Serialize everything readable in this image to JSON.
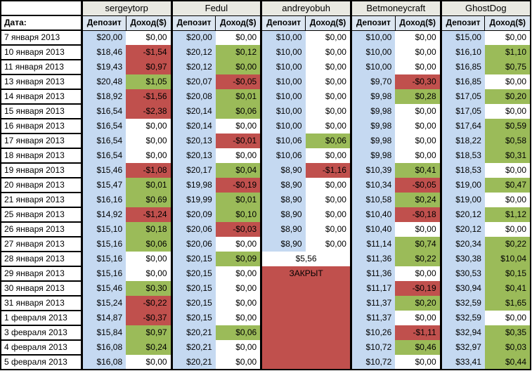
{
  "colors": {
    "green": "#9BBB59",
    "red": "#C0504D",
    "dep-blue": "#C5D9F1",
    "hdr-blue": "#DCE6F1",
    "trader-bg": "#E9E9E2"
  },
  "table": {
    "date_header": "Дата:",
    "col_headers": {
      "deposit": "Депозит",
      "income": "Доход($)"
    },
    "traders": [
      "sergeytorp",
      "Fedul",
      "andreyobuh",
      "Betmoneycraft",
      "GhostDog"
    ],
    "closed_label": "ЗАКРЫТ",
    "rows": [
      {
        "date": "7 января 2013",
        "cells": [
          [
            "$20,00",
            "$0,00",
            "w"
          ],
          [
            "$20,00",
            "$0,00",
            "w"
          ],
          [
            "$10,00",
            "$0,00",
            "w"
          ],
          [
            "$10,00",
            "$0,00",
            "w"
          ],
          [
            "$15,00",
            "$0,00",
            "w"
          ]
        ]
      },
      {
        "date": "10 января 2013",
        "cells": [
          [
            "$18,46",
            "-$1,54",
            "r"
          ],
          [
            "$20,12",
            "$0,12",
            "g"
          ],
          [
            "$10,00",
            "$0,00",
            "w"
          ],
          [
            "$10,00",
            "$0,00",
            "w"
          ],
          [
            "$16,10",
            "$1,10",
            "g"
          ]
        ]
      },
      {
        "date": "11 января 2013",
        "cells": [
          [
            "$19,43",
            "$0,97",
            "r"
          ],
          [
            "$20,12",
            "$0,00",
            "g"
          ],
          [
            "$10,00",
            "$0,00",
            "w"
          ],
          [
            "$10,00",
            "$0,00",
            "w"
          ],
          [
            "$16,85",
            "$0,75",
            "g"
          ]
        ]
      },
      {
        "date": "13 января 2013",
        "cells": [
          [
            "$20,48",
            "$1,05",
            "g"
          ],
          [
            "$20,07",
            "-$0,05",
            "r"
          ],
          [
            "$10,00",
            "$0,00",
            "w"
          ],
          [
            "$9,70",
            "-$0,30",
            "r"
          ],
          [
            "$16,85",
            "$0,00",
            "w"
          ]
        ]
      },
      {
        "date": "14 января 2013",
        "cells": [
          [
            "$18,92",
            "-$1,56",
            "r"
          ],
          [
            "$20,08",
            "$0,01",
            "g"
          ],
          [
            "$10,00",
            "$0,00",
            "w"
          ],
          [
            "$9,98",
            "$0,28",
            "g"
          ],
          [
            "$17,05",
            "$0,20",
            "g"
          ]
        ]
      },
      {
        "date": "15 января 2013",
        "cells": [
          [
            "$16,54",
            "-$2,38",
            "r"
          ],
          [
            "$20,14",
            "$0,06",
            "g"
          ],
          [
            "$10,00",
            "$0,00",
            "w"
          ],
          [
            "$9,98",
            "$0,00",
            "w"
          ],
          [
            "$17,05",
            "$0,00",
            "w"
          ]
        ]
      },
      {
        "date": "16 января 2013",
        "cells": [
          [
            "$16,54",
            "$0,00",
            "w"
          ],
          [
            "$20,14",
            "$0,00",
            "w"
          ],
          [
            "$10,00",
            "$0,00",
            "w"
          ],
          [
            "$9,98",
            "$0,00",
            "w"
          ],
          [
            "$17,64",
            "$0,59",
            "g"
          ]
        ]
      },
      {
        "date": "17 января 2013",
        "cells": [
          [
            "$16,54",
            "$0,00",
            "w"
          ],
          [
            "$20,13",
            "-$0,01",
            "r"
          ],
          [
            "$10,06",
            "$0,06",
            "g"
          ],
          [
            "$9,98",
            "$0,00",
            "w"
          ],
          [
            "$18,22",
            "$0,58",
            "g"
          ]
        ]
      },
      {
        "date": "18 января 2013",
        "cells": [
          [
            "$16,54",
            "$0,00",
            "w"
          ],
          [
            "$20,13",
            "$0,00",
            "w"
          ],
          [
            "$10,06",
            "$0,00",
            "w"
          ],
          [
            "$9,98",
            "$0,00",
            "w"
          ],
          [
            "$18,53",
            "$0,31",
            "g"
          ]
        ]
      },
      {
        "date": "19 января 2013",
        "cells": [
          [
            "$15,46",
            "-$1,08",
            "r"
          ],
          [
            "$20,17",
            "$0,04",
            "g"
          ],
          [
            "$8,90",
            "-$1,16",
            "r"
          ],
          [
            "$10,39",
            "$0,41",
            "g"
          ],
          [
            "$18,53",
            "$0,00",
            "w"
          ]
        ]
      },
      {
        "date": "20 января 2013",
        "cells": [
          [
            "$15,47",
            "$0,01",
            "g"
          ],
          [
            "$19,98",
            "-$0,19",
            "r"
          ],
          [
            "$8,90",
            "$0,00",
            "w"
          ],
          [
            "$10,34",
            "-$0,05",
            "r"
          ],
          [
            "$19,00",
            "$0,47",
            "g"
          ]
        ]
      },
      {
        "date": "21 января 2013",
        "cells": [
          [
            "$16,16",
            "$0,69",
            "g"
          ],
          [
            "$19,99",
            "$0,01",
            "g"
          ],
          [
            "$8,90",
            "$0,00",
            "w"
          ],
          [
            "$10,58",
            "$0,24",
            "g"
          ],
          [
            "$19,00",
            "$0,00",
            "w"
          ]
        ]
      },
      {
        "date": "25 января 2013",
        "cells": [
          [
            "$14,92",
            "-$1,24",
            "r"
          ],
          [
            "$20,09",
            "$0,10",
            "g"
          ],
          [
            "$8,90",
            "$0,00",
            "w"
          ],
          [
            "$10,40",
            "-$0,18",
            "r"
          ],
          [
            "$20,12",
            "$1,12",
            "g"
          ]
        ]
      },
      {
        "date": "26 января 2013",
        "cells": [
          [
            "$15,10",
            "$0,18",
            "g"
          ],
          [
            "$20,06",
            "-$0,03",
            "r"
          ],
          [
            "$8,90",
            "$0,00",
            "w"
          ],
          [
            "$10,40",
            "$0,00",
            "w"
          ],
          [
            "$20,12",
            "$0,00",
            "w"
          ]
        ]
      },
      {
        "date": "27 января 2013",
        "cells": [
          [
            "$15,16",
            "$0,06",
            "g"
          ],
          [
            "$20,06",
            "$0,00",
            "w"
          ],
          [
            "$8,90",
            "$0,00",
            "w"
          ],
          [
            "$11,14",
            "$0,74",
            "g"
          ],
          [
            "$20,34",
            "$0,22",
            "g"
          ]
        ]
      },
      {
        "date": "28 января 2013",
        "cells": [
          [
            "$15,16",
            "$0,00",
            "w"
          ],
          [
            "$20,15",
            "$0,09",
            "g"
          ],
          {
            "m": "$5,56",
            "bg": "w"
          },
          [
            "$11,36",
            "$0,22",
            "g"
          ],
          [
            "$30,38",
            "$10,04",
            "g"
          ]
        ]
      },
      {
        "date": "29 января 2013",
        "cells": [
          [
            "$15,16",
            "$0,00",
            "w"
          ],
          [
            "$20,15",
            "$0,00",
            "w"
          ],
          {
            "m": "ЗАКРЫТ",
            "bg": "r"
          },
          [
            "$11,36",
            "$0,00",
            "w"
          ],
          [
            "$30,53",
            "$0,15",
            "g"
          ]
        ]
      },
      {
        "date": "30 января 2013",
        "cells": [
          [
            "$15,46",
            "$0,30",
            "g"
          ],
          [
            "$20,15",
            "$0,00",
            "w"
          ],
          {
            "m": "",
            "bg": "r"
          },
          [
            "$11,17",
            "-$0,19",
            "r"
          ],
          [
            "$30,94",
            "$0,41",
            "g"
          ]
        ]
      },
      {
        "date": "31 января 2013",
        "cells": [
          [
            "$15,24",
            "-$0,22",
            "r"
          ],
          [
            "$20,15",
            "$0,00",
            "w"
          ],
          {
            "m": "",
            "bg": "r"
          },
          [
            "$11,37",
            "$0,20",
            "g"
          ],
          [
            "$32,59",
            "$1,65",
            "g"
          ]
        ]
      },
      {
        "date": "1 февраля 2013",
        "cells": [
          [
            "$14,87",
            "-$0,37",
            "r"
          ],
          [
            "$20,15",
            "$0,00",
            "w"
          ],
          {
            "m": "",
            "bg": "r"
          },
          [
            "$11,37",
            "$0,00",
            "w"
          ],
          [
            "$32,59",
            "$0,00",
            "w"
          ]
        ]
      },
      {
        "date": "3 февраля 2013",
        "cells": [
          [
            "$15,84",
            "$0,97",
            "g"
          ],
          [
            "$20,21",
            "$0,06",
            "g"
          ],
          {
            "m": "",
            "bg": "r"
          },
          [
            "$10,26",
            "-$1,11",
            "r"
          ],
          [
            "$32,94",
            "$0,35",
            "g"
          ]
        ]
      },
      {
        "date": "4 февраля 2013",
        "cells": [
          [
            "$16,08",
            "$0,24",
            "g"
          ],
          [
            "$20,21",
            "$0,00",
            "w"
          ],
          {
            "m": "",
            "bg": "r"
          },
          [
            "$10,72",
            "$0,46",
            "g"
          ],
          [
            "$32,97",
            "$0,03",
            "g"
          ]
        ]
      },
      {
        "date": "5 февраля 2013",
        "cells": [
          [
            "$16,08",
            "$0,00",
            "w"
          ],
          [
            "$20,21",
            "$0,00",
            "w"
          ],
          {
            "m": "",
            "bg": "r"
          },
          [
            "$10,72",
            "$0,00",
            "w"
          ],
          [
            "$33,41",
            "$0,44",
            "g"
          ]
        ]
      }
    ]
  }
}
